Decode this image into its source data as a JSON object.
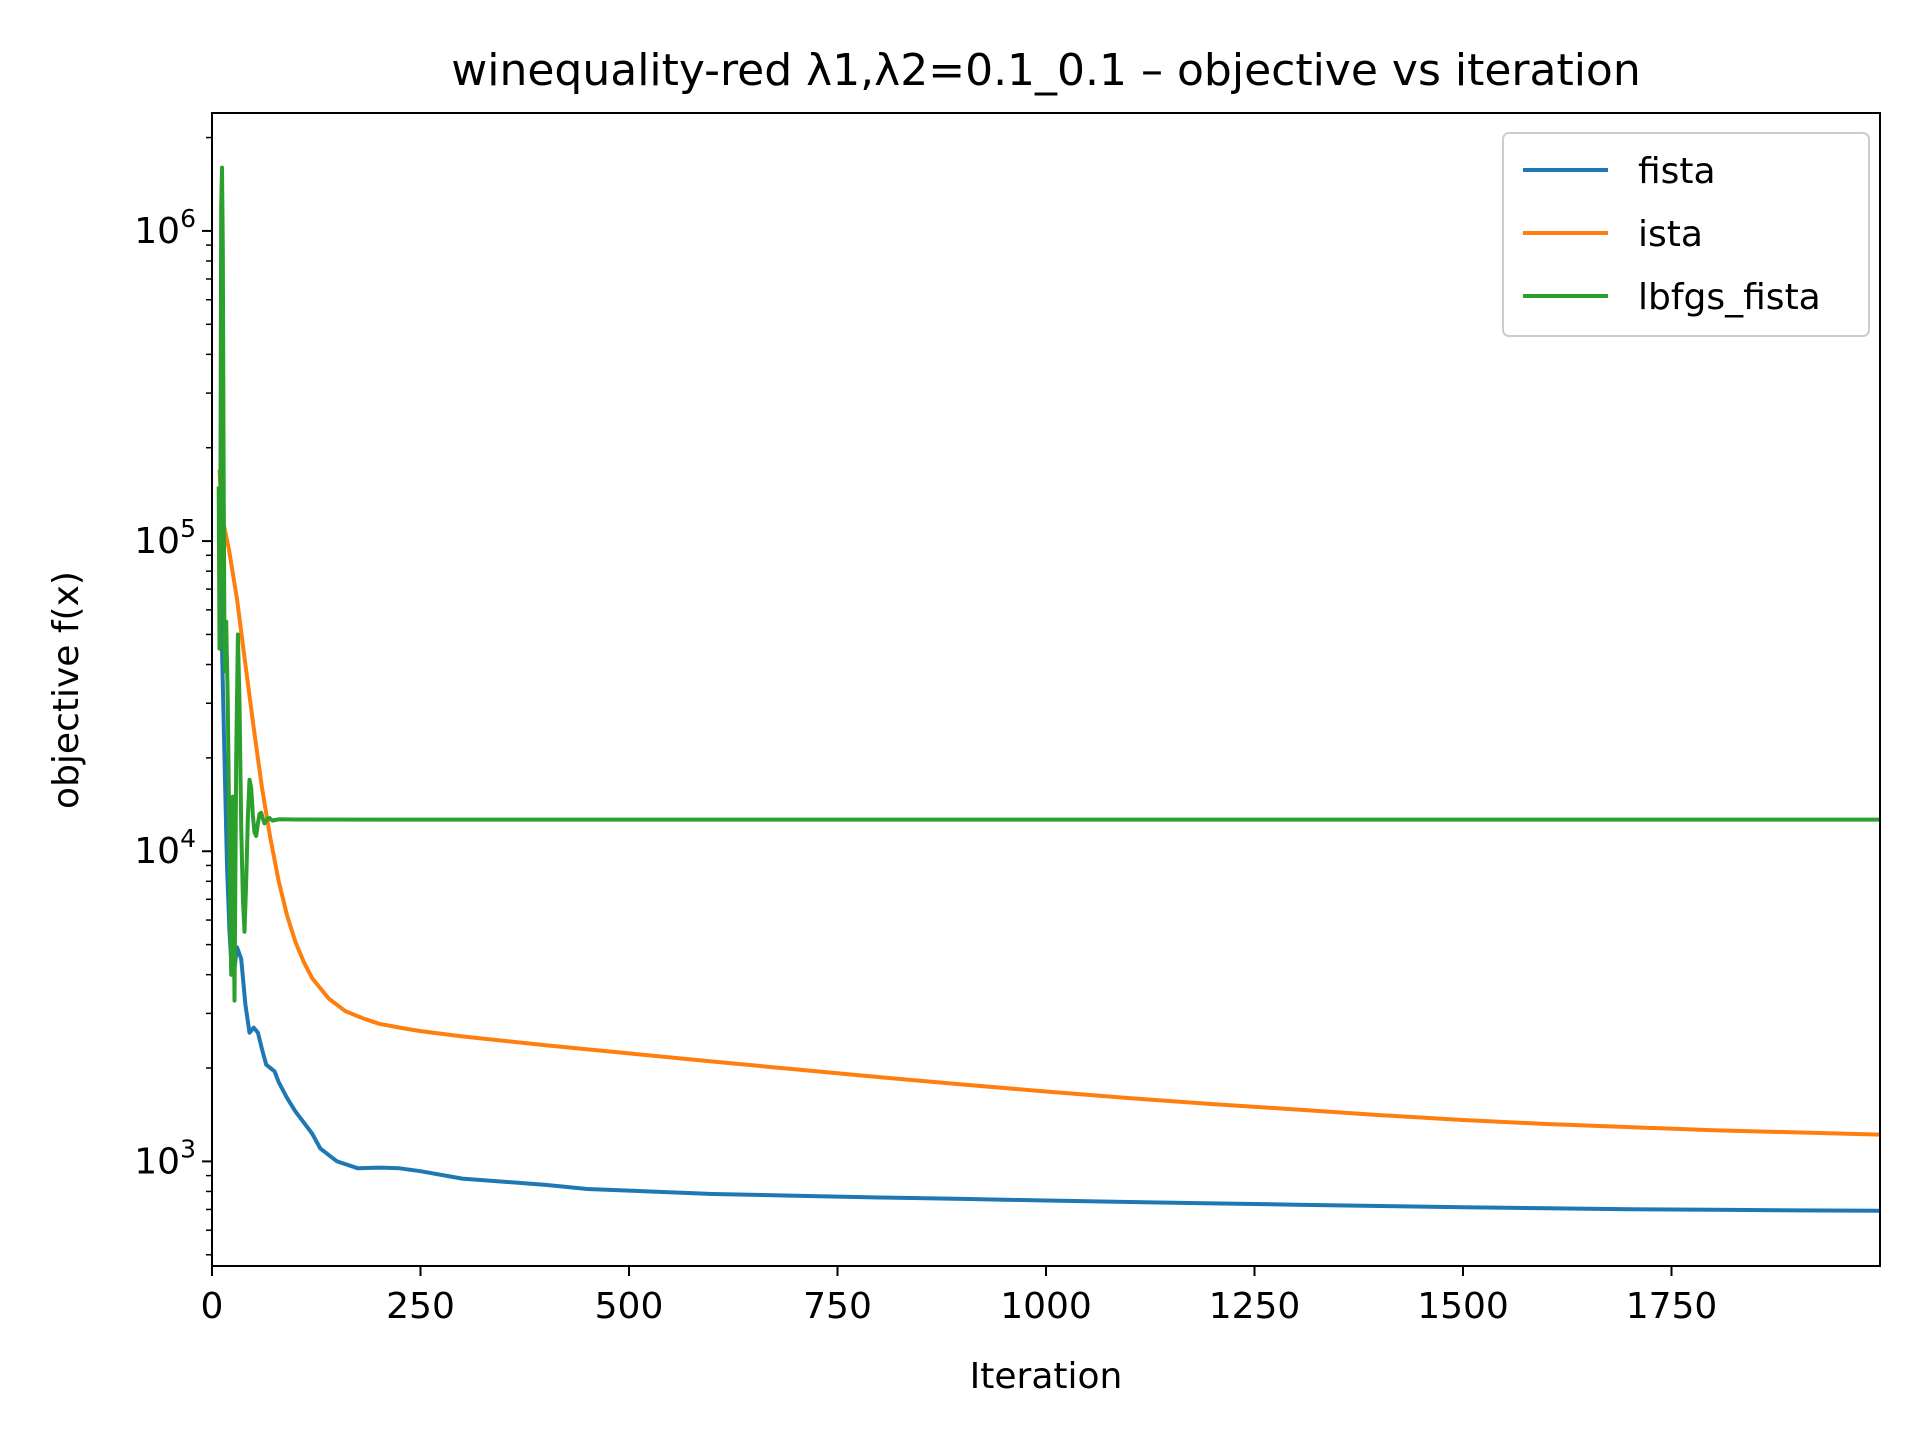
{
  "chart_data": {
    "type": "line",
    "title": "winequality-red   λ1,λ2=0.1_0.1  –  objective vs iteration",
    "xlabel": "Iteration",
    "ylabel": "objective f(x)",
    "xlim": [
      0,
      2000
    ],
    "ylim": [
      460,
      2400000
    ],
    "yscale": "log",
    "grid": false,
    "legend_position": "top-right",
    "x_ticks": [
      0,
      250,
      500,
      750,
      1000,
      1250,
      1500,
      1750
    ],
    "x_tick_labels": [
      "0",
      "250",
      "500",
      "750",
      "1000",
      "1250",
      "1500",
      "1750"
    ],
    "y_ticks": [
      1000,
      10000,
      100000,
      1000000
    ],
    "y_tick_labels": [
      {
        "base": "10",
        "exp": "3"
      },
      {
        "base": "10",
        "exp": "4"
      },
      {
        "base": "10",
        "exp": "5"
      },
      {
        "base": "10",
        "exp": "6"
      }
    ],
    "series": [
      {
        "name": "fista",
        "color": "#1f77b4",
        "points": [
          [
            9,
            100000
          ],
          [
            12,
            45000
          ],
          [
            15,
            20000
          ],
          [
            18,
            9000
          ],
          [
            21,
            5500
          ],
          [
            24,
            4000
          ],
          [
            27,
            4200
          ],
          [
            30,
            4900
          ],
          [
            35,
            4500
          ],
          [
            40,
            3200
          ],
          [
            45,
            2600
          ],
          [
            50,
            2700
          ],
          [
            55,
            2600
          ],
          [
            60,
            2300
          ],
          [
            65,
            2050
          ],
          [
            70,
            2000
          ],
          [
            75,
            1950
          ],
          [
            80,
            1800
          ],
          [
            90,
            1600
          ],
          [
            100,
            1450
          ],
          [
            120,
            1230
          ],
          [
            130,
            1100
          ],
          [
            150,
            1000
          ],
          [
            175,
            950
          ],
          [
            200,
            955
          ],
          [
            225,
            950
          ],
          [
            250,
            930
          ],
          [
            300,
            880
          ],
          [
            350,
            860
          ],
          [
            400,
            840
          ],
          [
            450,
            815
          ],
          [
            500,
            805
          ],
          [
            600,
            785
          ],
          [
            700,
            775
          ],
          [
            800,
            765
          ],
          [
            900,
            757
          ],
          [
            1000,
            748
          ],
          [
            1100,
            740
          ],
          [
            1200,
            732
          ],
          [
            1300,
            725
          ],
          [
            1400,
            718
          ],
          [
            1500,
            712
          ],
          [
            1600,
            706
          ],
          [
            1700,
            701
          ],
          [
            1800,
            698
          ],
          [
            1900,
            695
          ],
          [
            2000,
            693
          ]
        ]
      },
      {
        "name": "ista",
        "color": "#ff7f0e",
        "points": [
          [
            9,
            170000
          ],
          [
            12,
            120000
          ],
          [
            20,
            95000
          ],
          [
            30,
            65000
          ],
          [
            40,
            40000
          ],
          [
            50,
            25000
          ],
          [
            60,
            16000
          ],
          [
            70,
            11000
          ],
          [
            80,
            8000
          ],
          [
            90,
            6200
          ],
          [
            100,
            5100
          ],
          [
            110,
            4400
          ],
          [
            120,
            3900
          ],
          [
            140,
            3350
          ],
          [
            160,
            3050
          ],
          [
            180,
            2900
          ],
          [
            200,
            2780
          ],
          [
            225,
            2700
          ],
          [
            250,
            2630
          ],
          [
            300,
            2530
          ],
          [
            400,
            2370
          ],
          [
            500,
            2230
          ],
          [
            600,
            2100
          ],
          [
            700,
            1980
          ],
          [
            800,
            1870
          ],
          [
            900,
            1770
          ],
          [
            1000,
            1680
          ],
          [
            1100,
            1600
          ],
          [
            1200,
            1530
          ],
          [
            1300,
            1470
          ],
          [
            1400,
            1410
          ],
          [
            1500,
            1360
          ],
          [
            1600,
            1320
          ],
          [
            1700,
            1290
          ],
          [
            1800,
            1260
          ],
          [
            1900,
            1240
          ],
          [
            2000,
            1220
          ]
        ]
      },
      {
        "name": "lbfgs_fista",
        "color": "#2ca02c",
        "points": [
          [
            8,
            150000
          ],
          [
            9,
            45000
          ],
          [
            10,
            100000
          ],
          [
            11,
            1200000
          ],
          [
            12,
            1600000
          ],
          [
            13,
            900000
          ],
          [
            14,
            150000
          ],
          [
            15,
            45000
          ],
          [
            16,
            38000
          ],
          [
            17,
            55000
          ],
          [
            19,
            30000
          ],
          [
            21,
            10000
          ],
          [
            23,
            4000
          ],
          [
            25,
            15000
          ],
          [
            27,
            3300
          ],
          [
            29,
            20000
          ],
          [
            31,
            50000
          ],
          [
            33,
            30000
          ],
          [
            35,
            12000
          ],
          [
            37,
            7000
          ],
          [
            39,
            5500
          ],
          [
            41,
            8000
          ],
          [
            43,
            13000
          ],
          [
            45,
            17000
          ],
          [
            47,
            16000
          ],
          [
            49,
            13000
          ],
          [
            51,
            11500
          ],
          [
            53,
            11200
          ],
          [
            55,
            12300
          ],
          [
            57,
            13200
          ],
          [
            59,
            13300
          ],
          [
            61,
            12700
          ],
          [
            63,
            12300
          ],
          [
            65,
            12500
          ],
          [
            67,
            12750
          ],
          [
            69,
            12800
          ],
          [
            71,
            12650
          ],
          [
            73,
            12550
          ],
          [
            75,
            12600
          ],
          [
            80,
            12680
          ],
          [
            90,
            12670
          ],
          [
            100,
            12660
          ],
          [
            200,
            12650
          ],
          [
            500,
            12650
          ],
          [
            1000,
            12650
          ],
          [
            1500,
            12650
          ],
          [
            2000,
            12650
          ]
        ]
      }
    ]
  }
}
